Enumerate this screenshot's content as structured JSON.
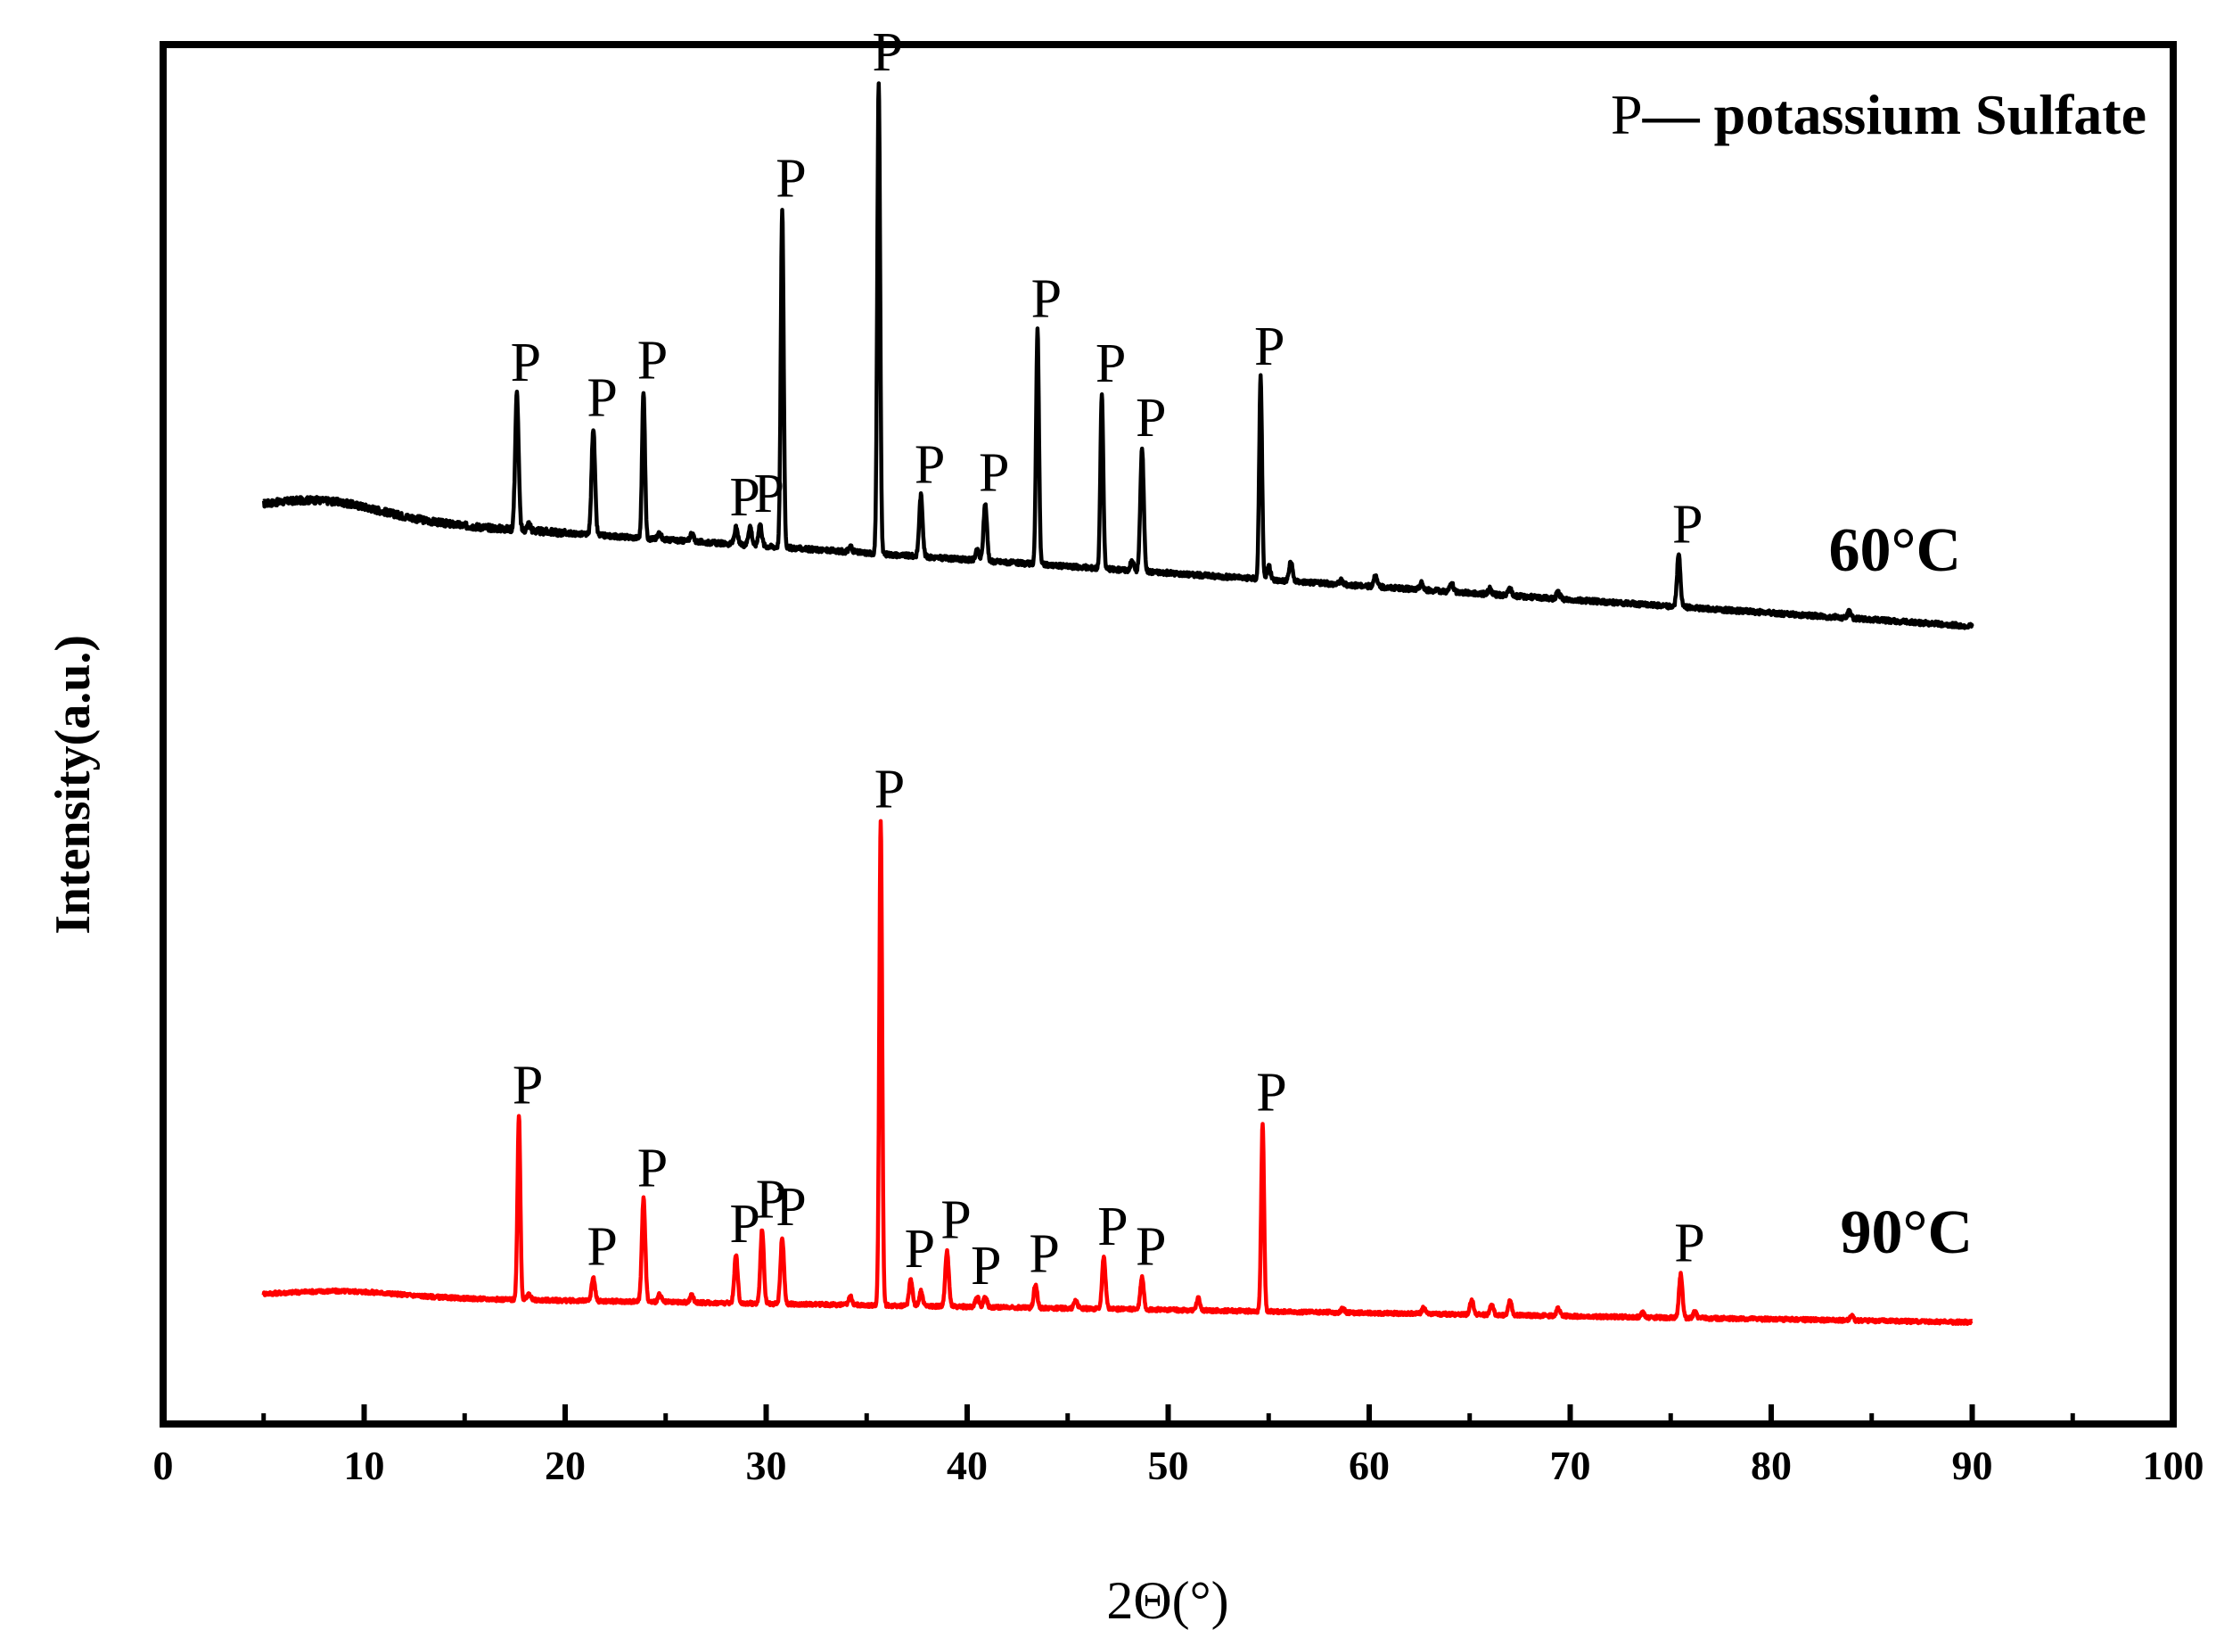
{
  "chart_data": {
    "type": "line",
    "title": "",
    "xlabel": "2Θ(°)",
    "ylabel": "Intensity(a.u.)",
    "xlim": [
      0,
      100
    ],
    "xticks": [
      0,
      10,
      20,
      30,
      40,
      50,
      60,
      70,
      80,
      90,
      100
    ],
    "yticks": [],
    "grid": false,
    "legend": {
      "placement": "top-right",
      "marker": "P",
      "text": "— potassium Sulfate"
    },
    "peak_marker": "P",
    "series": [
      {
        "name": "60°C",
        "color": "#000000",
        "x_range": [
          5,
          90
        ],
        "baseline": {
          "start": 0.88,
          "end": 0.05,
          "hump_center": 8,
          "hump_height": 0.12
        },
        "peaks": [
          {
            "x": 17.6,
            "h": 1.0,
            "label": true
          },
          {
            "x": 18.2,
            "h": 0.05
          },
          {
            "x": 21.4,
            "h": 0.78,
            "label": true
          },
          {
            "x": 23.9,
            "h": 1.08,
            "label": true
          },
          {
            "x": 24.7,
            "h": 0.05
          },
          {
            "x": 26.3,
            "h": 0.06
          },
          {
            "x": 28.5,
            "h": 0.12,
            "label": true
          },
          {
            "x": 29.2,
            "h": 0.14
          },
          {
            "x": 29.7,
            "h": 0.16,
            "label": true
          },
          {
            "x": 30.8,
            "h": 2.48,
            "label": true
          },
          {
            "x": 34.2,
            "h": 0.04
          },
          {
            "x": 35.6,
            "h": 3.45,
            "label": true
          },
          {
            "x": 37.7,
            "h": 0.45,
            "label": true
          },
          {
            "x": 40.5,
            "h": 0.07
          },
          {
            "x": 40.9,
            "h": 0.42,
            "label": true
          },
          {
            "x": 43.5,
            "h": 1.72,
            "label": true
          },
          {
            "x": 46.7,
            "h": 1.28,
            "label": true
          },
          {
            "x": 48.2,
            "h": 0.07
          },
          {
            "x": 48.7,
            "h": 0.9,
            "label": true
          },
          {
            "x": 54.6,
            "h": 1.48,
            "label": true
          },
          {
            "x": 55.0,
            "h": 0.1
          },
          {
            "x": 56.1,
            "h": 0.14
          },
          {
            "x": 58.6,
            "h": 0.03
          },
          {
            "x": 60.3,
            "h": 0.08
          },
          {
            "x": 62.6,
            "h": 0.05
          },
          {
            "x": 64.1,
            "h": 0.06
          },
          {
            "x": 66.0,
            "h": 0.04
          },
          {
            "x": 67.0,
            "h": 0.05
          },
          {
            "x": 69.4,
            "h": 0.05
          },
          {
            "x": 75.4,
            "h": 0.38,
            "label": true
          },
          {
            "x": 83.9,
            "h": 0.05
          }
        ]
      },
      {
        "name": "90°C",
        "color": "#ff0000",
        "x_range": [
          5,
          90
        ],
        "baseline": {
          "start": 0.18,
          "end": 0.0,
          "hump_center": 9,
          "hump_height": 0.04
        },
        "peaks": [
          {
            "x": 17.7,
            "h": 1.25,
            "label": true
          },
          {
            "x": 18.2,
            "h": 0.04
          },
          {
            "x": 21.4,
            "h": 0.16,
            "label": true
          },
          {
            "x": 23.9,
            "h": 0.7,
            "label": true
          },
          {
            "x": 24.7,
            "h": 0.05
          },
          {
            "x": 26.3,
            "h": 0.05
          },
          {
            "x": 28.5,
            "h": 0.33,
            "label": true
          },
          {
            "x": 29.8,
            "h": 0.5,
            "label": true
          },
          {
            "x": 30.8,
            "h": 0.45,
            "label": true
          },
          {
            "x": 34.2,
            "h": 0.06
          },
          {
            "x": 35.7,
            "h": 3.3,
            "label": true
          },
          {
            "x": 37.2,
            "h": 0.18,
            "label": true
          },
          {
            "x": 37.7,
            "h": 0.1
          },
          {
            "x": 39.0,
            "h": 0.38,
            "label": true
          },
          {
            "x": 40.5,
            "h": 0.07,
            "label": true
          },
          {
            "x": 40.9,
            "h": 0.07
          },
          {
            "x": 43.4,
            "h": 0.16,
            "label": true
          },
          {
            "x": 45.4,
            "h": 0.06
          },
          {
            "x": 46.8,
            "h": 0.35,
            "label": true
          },
          {
            "x": 48.7,
            "h": 0.22,
            "label": true
          },
          {
            "x": 51.5,
            "h": 0.08
          },
          {
            "x": 54.7,
            "h": 1.28,
            "label": true
          },
          {
            "x": 58.7,
            "h": 0.03
          },
          {
            "x": 62.7,
            "h": 0.04
          },
          {
            "x": 65.1,
            "h": 0.1
          },
          {
            "x": 66.1,
            "h": 0.07
          },
          {
            "x": 67.0,
            "h": 0.1
          },
          {
            "x": 69.4,
            "h": 0.05
          },
          {
            "x": 73.6,
            "h": 0.03
          },
          {
            "x": 75.5,
            "h": 0.3,
            "label": true
          },
          {
            "x": 76.2,
            "h": 0.04
          },
          {
            "x": 84.0,
            "h": 0.03
          }
        ]
      }
    ]
  }
}
